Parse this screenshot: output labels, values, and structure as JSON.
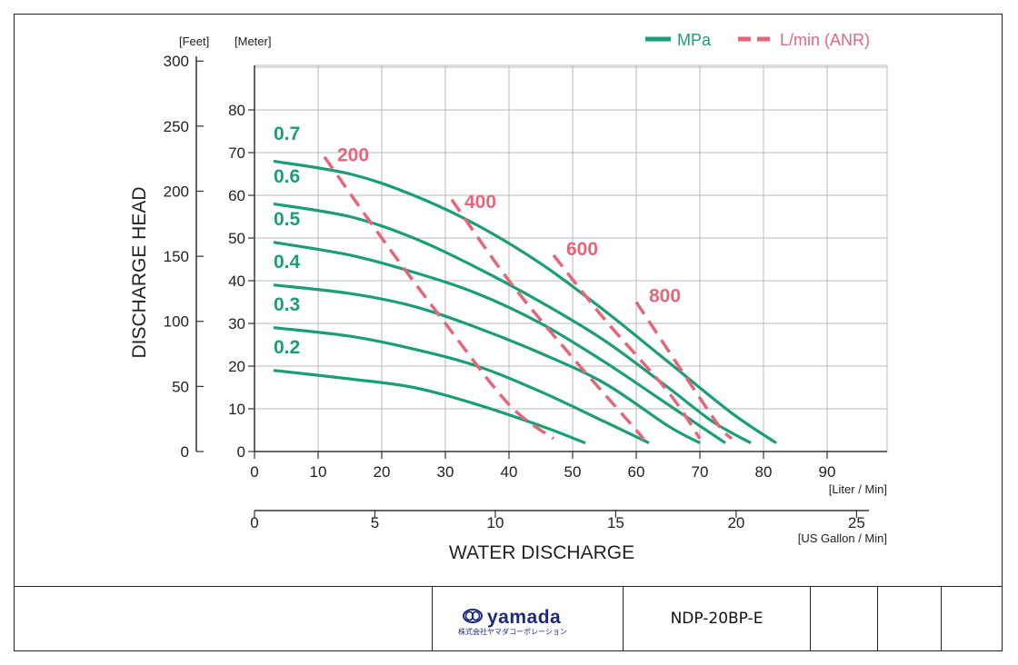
{
  "chart_data": {
    "type": "line",
    "xlabel": "WATER DISCHARGE",
    "ylabel": "DISCHARGE HEAD",
    "x_unit_primary": "[Liter / Min]",
    "x_unit_secondary": "[US Gallon / Min]",
    "y_unit_feet": "[Feet]",
    "y_unit_meter": "[Meter]",
    "xlim": [
      0,
      100
    ],
    "ylim": [
      0,
      92
    ],
    "x_ticks": [
      "0",
      "10",
      "20",
      "30",
      "40",
      "50",
      "60",
      "70",
      "80",
      "90"
    ],
    "x_gal_ticks": [
      "0",
      "5",
      "10",
      "15",
      "20",
      "25"
    ],
    "y_m_ticks": [
      "0",
      "10",
      "20",
      "30",
      "40",
      "50",
      "60",
      "70",
      "80"
    ],
    "y_ft_ticks": [
      "0",
      "50",
      "100",
      "150",
      "200",
      "250",
      "300"
    ],
    "legend": {
      "placement": "top-right",
      "solid": "MPa",
      "dashed": "L/min (ANR)",
      "solid_color": "#1a9e78",
      "dashed_color": "#e5667a"
    },
    "series": [
      {
        "name": "0.7",
        "style": "solid",
        "x": [
          3,
          15,
          25,
          35,
          45,
          55,
          65,
          75,
          82
        ],
        "y": [
          68,
          65,
          60,
          53,
          44,
          33,
          21,
          9,
          2
        ]
      },
      {
        "name": "0.6",
        "style": "solid",
        "x": [
          3,
          15,
          25,
          35,
          45,
          55,
          65,
          72,
          78
        ],
        "y": [
          58,
          55,
          50,
          43,
          35,
          26,
          15,
          7,
          2
        ]
      },
      {
        "name": "0.5",
        "style": "solid",
        "x": [
          3,
          15,
          25,
          35,
          45,
          55,
          65,
          70,
          74
        ],
        "y": [
          49,
          46,
          42,
          37,
          30,
          21,
          11,
          6,
          2
        ]
      },
      {
        "name": "0.4",
        "style": "solid",
        "x": [
          3,
          15,
          25,
          35,
          45,
          55,
          65,
          70
        ],
        "y": [
          39,
          37,
          34,
          29,
          23,
          16,
          6,
          2
        ]
      },
      {
        "name": "0.3",
        "style": "solid",
        "x": [
          3,
          15,
          25,
          35,
          45,
          55,
          62
        ],
        "y": [
          29,
          27,
          24,
          20,
          14,
          7,
          2
        ]
      },
      {
        "name": "0.2",
        "style": "solid",
        "x": [
          3,
          15,
          25,
          35,
          45,
          52
        ],
        "y": [
          19,
          17,
          15,
          11,
          6,
          2
        ]
      },
      {
        "name": "200",
        "style": "dashed",
        "x": [
          11,
          20,
          30,
          40,
          47
        ],
        "y": [
          69,
          50,
          30,
          11,
          3
        ]
      },
      {
        "name": "400",
        "style": "dashed",
        "x": [
          31,
          40,
          50,
          60,
          61
        ],
        "y": [
          59,
          40,
          22,
          5,
          3
        ]
      },
      {
        "name": "600",
        "style": "dashed",
        "x": [
          47,
          55,
          65,
          70
        ],
        "y": [
          46,
          31,
          14,
          3
        ]
      },
      {
        "name": "800",
        "style": "dashed",
        "x": [
          60,
          68,
          73,
          75
        ],
        "y": [
          35,
          17,
          6,
          3
        ]
      }
    ],
    "series_label_positions": {
      "0.7": [
        3,
        73
      ],
      "0.6": [
        3,
        63
      ],
      "0.5": [
        3,
        53
      ],
      "0.4": [
        3,
        43
      ],
      "0.3": [
        3,
        33
      ],
      "0.2": [
        3,
        23
      ],
      "200": [
        13,
        68
      ],
      "400": [
        33,
        57
      ],
      "600": [
        49,
        46
      ],
      "800": [
        62,
        35
      ]
    }
  },
  "footer": {
    "logo_text": "yamada",
    "logo_subtext": "株式会社ヤマダコーポレーション",
    "model": "NDP-20BP-E"
  }
}
